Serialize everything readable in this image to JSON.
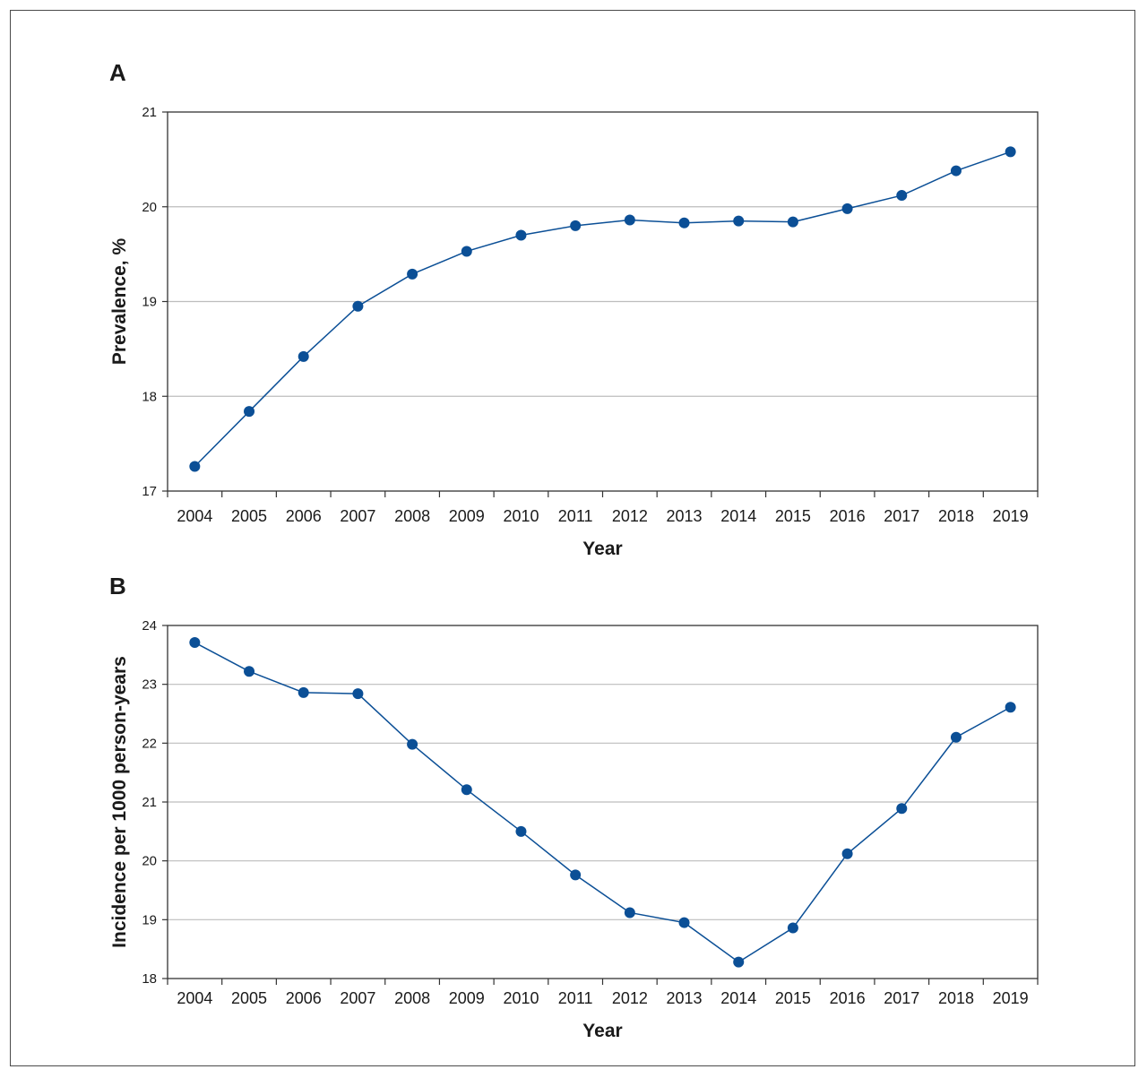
{
  "chart_data": [
    {
      "type": "line",
      "panel_label": "A",
      "title": "",
      "xlabel": "Year",
      "ylabel": "Prevalence, %",
      "x": [
        "2004",
        "2005",
        "2006",
        "2007",
        "2008",
        "2009",
        "2010",
        "2011",
        "2012",
        "2013",
        "2014",
        "2015",
        "2016",
        "2017",
        "2018",
        "2019"
      ],
      "series": [
        {
          "values": [
            17.26,
            17.84,
            18.42,
            18.95,
            19.29,
            19.53,
            19.7,
            19.8,
            19.86,
            19.83,
            19.85,
            19.84,
            19.98,
            20.12,
            20.38,
            20.58
          ]
        }
      ],
      "ylim": [
        17,
        21
      ],
      "yticks": [
        17,
        18,
        19,
        20,
        21
      ],
      "grid": "horizontal",
      "color": "#0b4f96"
    },
    {
      "type": "line",
      "panel_label": "B",
      "title": "",
      "xlabel": "Year",
      "ylabel": "Incidence per 1000 person-years",
      "x": [
        "2004",
        "2005",
        "2006",
        "2007",
        "2008",
        "2009",
        "2010",
        "2011",
        "2012",
        "2013",
        "2014",
        "2015",
        "2016",
        "2017",
        "2018",
        "2019"
      ],
      "series": [
        {
          "values": [
            23.71,
            23.22,
            22.86,
            22.84,
            21.98,
            21.21,
            20.5,
            19.76,
            19.12,
            18.95,
            18.28,
            18.86,
            20.12,
            20.89,
            22.1,
            22.61
          ]
        }
      ],
      "ylim": [
        18,
        24
      ],
      "yticks": [
        18,
        19,
        20,
        21,
        22,
        23,
        24
      ],
      "grid": "horizontal",
      "color": "#0b4f96"
    }
  ]
}
